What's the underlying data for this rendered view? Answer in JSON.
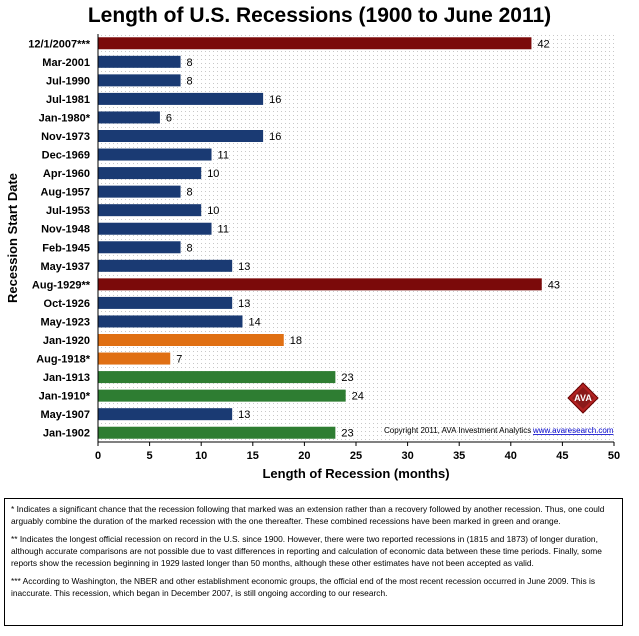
{
  "chart_data": {
    "type": "bar",
    "orientation": "horizontal",
    "title": "Length of U.S. Recessions (1900 to June 2011)",
    "xlabel": "Length of Recession (months)",
    "ylabel": "Recession Start Date",
    "xlim": [
      0,
      50
    ],
    "xticks": [
      0,
      5,
      10,
      15,
      20,
      25,
      30,
      35,
      40,
      45,
      50
    ],
    "grid": "dotted background",
    "categories": [
      "12/1/2007***",
      "Mar-2001",
      "Jul-1990",
      "Jul-1981",
      "Jan-1980*",
      "Nov-1973",
      "Dec-1969",
      "Apr-1960",
      "Aug-1957",
      "Jul-1953",
      "Nov-1948",
      "Feb-1945",
      "May-1937",
      "Aug-1929**",
      "Oct-1926",
      "May-1923",
      "Jan-1920",
      "Aug-1918*",
      "Jan-1913",
      "Jan-1910*",
      "May-1907",
      "Jan-1902"
    ],
    "values": [
      42,
      8,
      8,
      16,
      6,
      16,
      11,
      10,
      8,
      10,
      11,
      8,
      13,
      43,
      13,
      14,
      18,
      7,
      23,
      24,
      13,
      23
    ],
    "colors": [
      "#7b0a0a",
      "#1a3a73",
      "#1a3a73",
      "#1a3a73",
      "#1a3a73",
      "#1a3a73",
      "#1a3a73",
      "#1a3a73",
      "#1a3a73",
      "#1a3a73",
      "#1a3a73",
      "#1a3a73",
      "#1a3a73",
      "#7b0a0a",
      "#1a3a73",
      "#1a3a73",
      "#e07014",
      "#e07014",
      "#2e7d32",
      "#2e7d32",
      "#1a3a73",
      "#2e7d32"
    ],
    "copyright": "Copyright 2011, AVA Investment Analytics",
    "copyright_link": "www.avaresearch.com",
    "logo_text": "AVA"
  },
  "notes": [
    "* Indicates a significant chance that the recession following that marked was an extension rather than a recovery followed by another recession. Thus, one could arguably combine the duration of the marked recession with the one thereafter. These combined recessions have been marked in green and orange.",
    "** Indicates the longest official recession on record in the U.S. since 1900. However, there were two reported recessions in (1815 and 1873) of longer duration, although accurate comparisons are not possible due to vast differences in reporting and calculation of economic data between these time periods. Finally, some reports show the recession beginning in 1929 lasted longer than 50 months, although these other estimates have not been accepted as valid.",
    "*** According to Washington, the NBER and other establishment economic groups, the official end of the most recent recession occurred in June 2009. This is inaccurate. This recession, which began in December 2007, is still ongoing according to our research."
  ]
}
